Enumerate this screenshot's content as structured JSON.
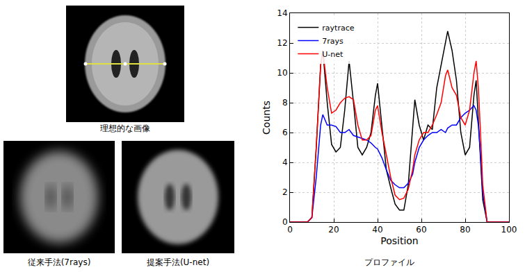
{
  "captions": {
    "ideal": "理想的な画像",
    "conventional": "従来手法(7rays)",
    "proposed": "提案手法(U-net)",
    "profile": "プロファイル"
  },
  "chart_data": {
    "type": "line",
    "x_label": "Position",
    "y_label": "Counts",
    "x": [
      0,
      8,
      10,
      12,
      14,
      15,
      17,
      19,
      21,
      23,
      25,
      27,
      29,
      31,
      33,
      35,
      37,
      39,
      40,
      42,
      44,
      46,
      48,
      50,
      52,
      54,
      56,
      57,
      59,
      61,
      63,
      65,
      67,
      69,
      71,
      72,
      74,
      76,
      78,
      80,
      82,
      84,
      85,
      86,
      87,
      88,
      90,
      100
    ],
    "series": [
      {
        "name": "raytrace",
        "color": "#000000",
        "values": [
          0,
          0,
          0.3,
          5,
          10.5,
          11.5,
          8,
          5.2,
          4.7,
          5,
          7.5,
          10.8,
          8,
          5,
          4.5,
          5,
          6,
          8.5,
          9.3,
          6.5,
          3.5,
          2.3,
          1.2,
          0.8,
          0.8,
          2.5,
          6.5,
          8.2,
          6.5,
          5.5,
          6.5,
          6.2,
          9,
          10.5,
          12,
          12.8,
          11.5,
          9.5,
          6,
          4.5,
          5,
          8.5,
          9.5,
          7,
          4,
          1.5,
          0,
          0
        ]
      },
      {
        "name": "7rays",
        "color": "#0000ff",
        "values": [
          0,
          0,
          0.3,
          3,
          6.5,
          7.2,
          6.5,
          6.5,
          6.4,
          6,
          6,
          6.2,
          5.8,
          5.7,
          5.6,
          5.5,
          5.3,
          5,
          4.9,
          4.3,
          3.5,
          2.8,
          2.5,
          2.3,
          2.3,
          2.6,
          3.2,
          4,
          5,
          5.5,
          5.8,
          6,
          6,
          6.2,
          6,
          6.3,
          6.5,
          6.5,
          7,
          7.3,
          7.5,
          7.8,
          7.5,
          6.5,
          4.5,
          2,
          0,
          0
        ]
      },
      {
        "name": "U-net",
        "color": "#ff0000",
        "values": [
          0,
          0,
          0.3,
          5,
          10.5,
          11.5,
          9,
          7.3,
          7.5,
          8,
          8.3,
          8.4,
          8.2,
          6.5,
          5.5,
          5.5,
          5.8,
          7.5,
          7.8,
          6,
          4.5,
          3,
          1.8,
          1.5,
          1.6,
          2.2,
          3.5,
          4.5,
          5.5,
          6,
          6,
          6.5,
          7.2,
          8,
          9.8,
          10.2,
          9,
          8.5,
          7,
          6.5,
          7.5,
          10,
          10.8,
          9,
          6,
          2.5,
          0,
          0
        ]
      }
    ],
    "xlim": [
      0,
      100
    ],
    "xticks": [
      0,
      20,
      40,
      60,
      80,
      100
    ],
    "ylim": [
      0,
      14
    ],
    "yticks": [
      0,
      2,
      4,
      6,
      8,
      10,
      12,
      14
    ],
    "grid": true,
    "legend": "upper left"
  }
}
